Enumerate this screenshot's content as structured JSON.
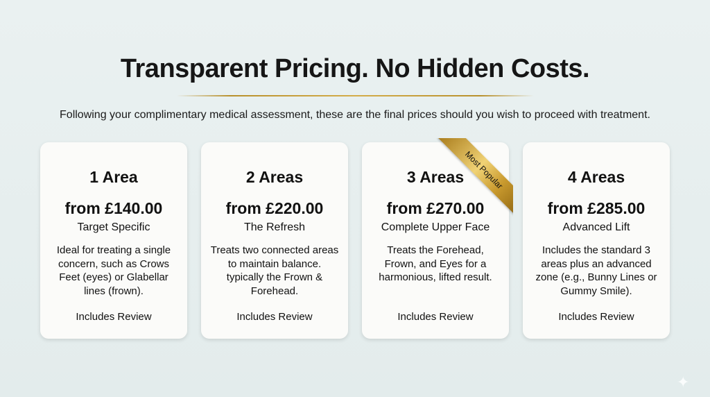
{
  "title": "Transparent Pricing. No Hidden Costs.",
  "subtitle": "Following your complimentary medical assessment, these are the final prices should you wish to proceed with treatment.",
  "accent_color": "#c9a03a",
  "cards": [
    {
      "name": "1 Area",
      "price": "from £140.00",
      "tagline": "Target Specific",
      "description": "Ideal for treating a single concern, such as Crows Feet (eyes) or Glabellar lines (frown).",
      "note": "Includes Review"
    },
    {
      "name": "2 Areas",
      "price": "from £220.00",
      "tagline": "The Refresh",
      "description": "Treats two connected areas to maintain balance. typically the Frown & Forehead.",
      "note": "Includes Review"
    },
    {
      "name": "3 Areas",
      "price": "from £270.00",
      "tagline": "Complete Upper Face",
      "description": "Treats the Forehead, Frown, and Eyes for a harmonious, lifted result.",
      "note": "Includes Review",
      "ribbon": "Most Popular"
    },
    {
      "name": "4 Areas",
      "price": "from £285.00",
      "tagline": "Advanced Lift",
      "description": "Includes the standard 3 areas plus an advanced zone (e.g., Bunny Lines or Gummy Smile).",
      "note": "Includes Review"
    }
  ]
}
